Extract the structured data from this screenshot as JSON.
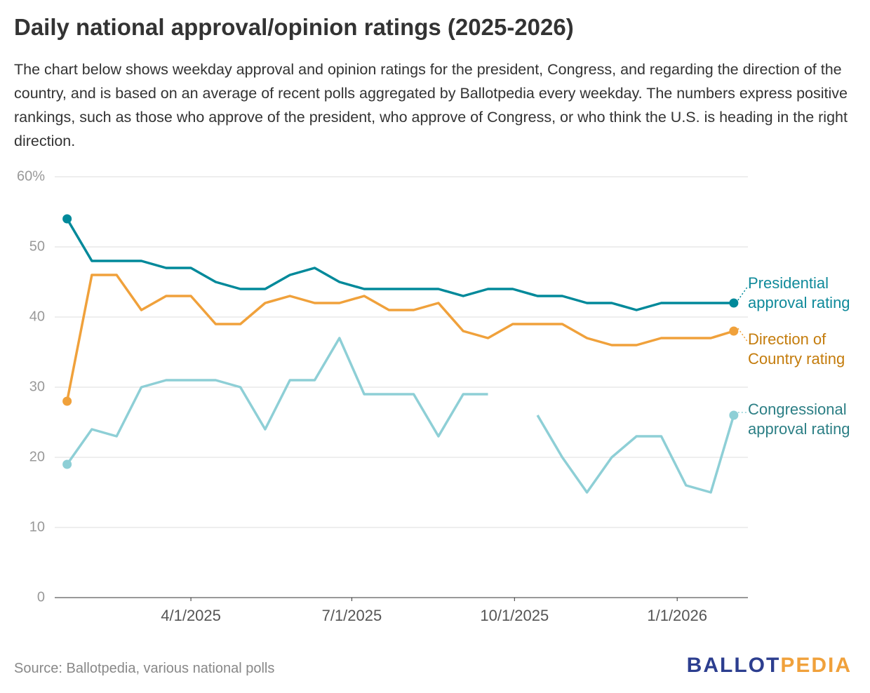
{
  "chart_data": {
    "type": "line",
    "title": "Daily national approval/opinion ratings (2025-2026)",
    "subtitle": "The chart below shows weekday approval and opinion ratings for the president, Congress, and regarding the direction of the country, and is based on an average of recent polls aggregated by Ballotpedia every weekday. The numbers express positive rankings, such as those who approve of the president, who approve of Congress, or who think the U.S. is heading in the right direction.",
    "source": "Source: Ballotpedia, various national polls",
    "logo": {
      "first": "BALLOT",
      "second": "PEDIA"
    },
    "x": [
      "2025-01-21",
      "2025-02-04",
      "2025-02-18",
      "2025-03-04",
      "2025-03-18",
      "2025-04-01",
      "2025-04-15",
      "2025-04-29",
      "2025-05-13",
      "2025-05-27",
      "2025-06-10",
      "2025-06-24",
      "2025-07-08",
      "2025-07-22",
      "2025-08-05",
      "2025-08-19",
      "2025-09-02",
      "2025-09-16",
      "2025-09-30",
      "2025-10-14",
      "2025-10-28",
      "2025-11-11",
      "2025-11-25",
      "2025-12-09",
      "2025-12-23",
      "2026-01-06",
      "2026-01-20",
      "2026-02-02"
    ],
    "xlim": [
      "2025-01-14",
      "2026-02-10"
    ],
    "xticks": [
      {
        "value": "2025-04-01",
        "label": "4/1/2025"
      },
      {
        "value": "2025-07-01",
        "label": "7/1/2025"
      },
      {
        "value": "2025-10-01",
        "label": "10/1/2025"
      },
      {
        "value": "2026-01-01",
        "label": "1/1/2026"
      }
    ],
    "ylim": [
      0,
      60
    ],
    "yticks": [
      0,
      10,
      20,
      30,
      40,
      50,
      {
        "value": 60,
        "label": "60%"
      }
    ],
    "grid": true,
    "series": [
      {
        "name": "Presidential approval rating",
        "color": "#00899a",
        "label_color": "#0f8a9a",
        "values": [
          54,
          48,
          48,
          48,
          47,
          47,
          45,
          44,
          44,
          46,
          47,
          45,
          44,
          44,
          44,
          44,
          43,
          44,
          44,
          43,
          43,
          42,
          42,
          41,
          42,
          42,
          42,
          42
        ]
      },
      {
        "name": "Direction of Country rating",
        "color": "#f0a13b",
        "label_color": "#c47c0c",
        "values": [
          28,
          46,
          46,
          41,
          43,
          43,
          39,
          39,
          42,
          43,
          42,
          42,
          43,
          41,
          41,
          42,
          38,
          37,
          39,
          39,
          39,
          37,
          36,
          36,
          37,
          37,
          37,
          38
        ]
      },
      {
        "name": "Congressional approval rating",
        "color": "#8ecfd6",
        "label_color": "#2c7f85",
        "values": [
          19,
          24,
          23,
          30,
          31,
          31,
          31,
          30,
          24,
          31,
          31,
          37,
          29,
          29,
          29,
          23,
          29,
          29,
          null,
          26,
          20,
          15,
          20,
          23,
          23,
          16,
          15,
          26
        ]
      }
    ]
  }
}
